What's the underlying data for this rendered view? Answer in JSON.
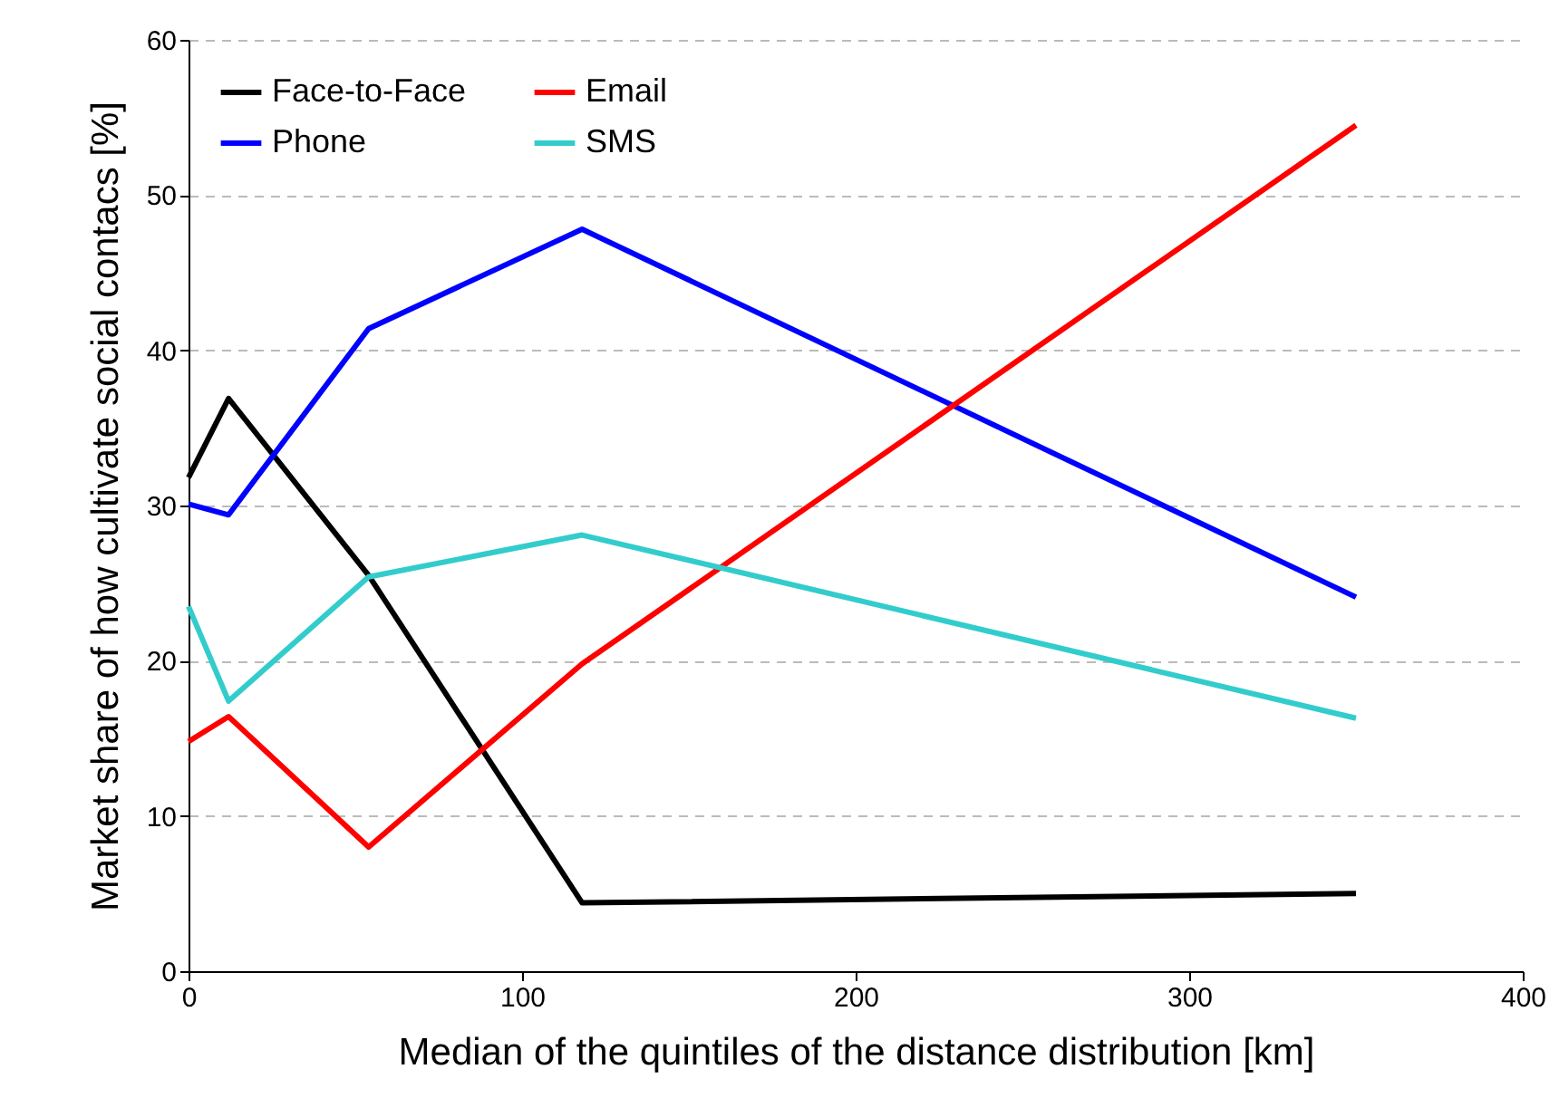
{
  "chart_data": {
    "type": "line",
    "xlabel": "Median of the quintiles of the distance distribution [km]",
    "ylabel": "Market share of how cultivate social contacs [%]",
    "x": [
      0,
      12,
      54,
      118,
      350
    ],
    "series": [
      {
        "name": "Face-to-Face",
        "color": "#000000",
        "values": [
          31.8,
          36.9,
          25.5,
          4.4,
          5.0
        ]
      },
      {
        "name": "Phone",
        "color": "#0000ff",
        "values": [
          30.1,
          29.4,
          41.4,
          47.8,
          24.1
        ]
      },
      {
        "name": "Email",
        "color": "#ff0000",
        "values": [
          14.8,
          16.4,
          8.0,
          19.8,
          54.5
        ]
      },
      {
        "name": "SMS",
        "color": "#33cccc",
        "values": [
          23.5,
          17.4,
          25.4,
          28.1,
          16.3
        ]
      }
    ],
    "xlim": [
      0,
      400
    ],
    "xticks": [
      0,
      100,
      200,
      300,
      400
    ],
    "ylim": [
      0,
      60
    ],
    "yticks": [
      0,
      10,
      20,
      30,
      40,
      50,
      60
    ],
    "grid": "y",
    "legend": "top left",
    "marker": "none",
    "line_style": "solid"
  }
}
